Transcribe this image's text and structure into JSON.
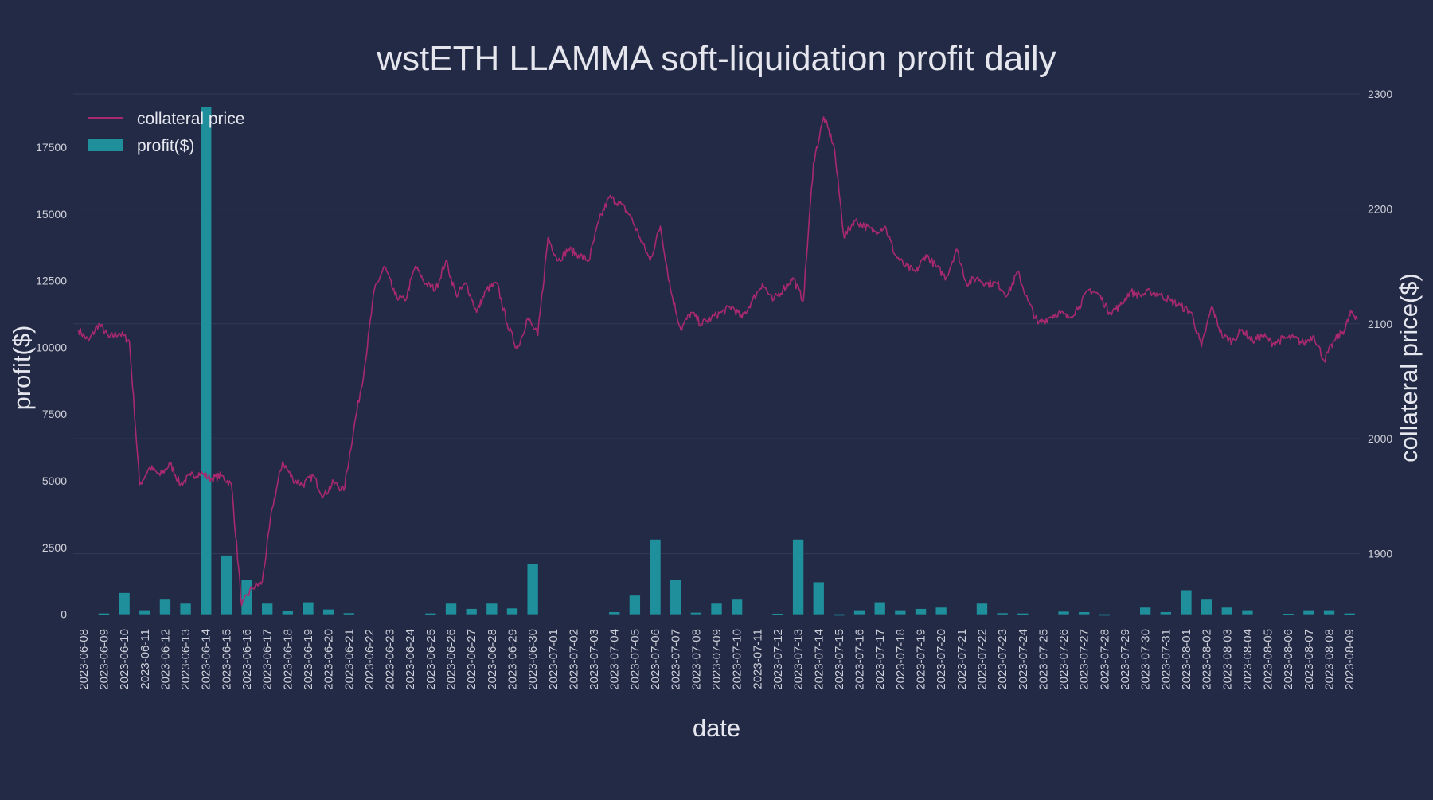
{
  "chart_data": {
    "type": "bar+line",
    "title": "wstETH LLAMMA soft-liquidation profit daily",
    "xlabel": "date",
    "ylabel_left": "profit($)",
    "ylabel_right": "collateral price($)",
    "ylim_left": [
      -100,
      19500
    ],
    "ylim_right": [
      1845,
      2300
    ],
    "yticks_left": [
      0,
      2500,
      5000,
      7500,
      10000,
      12500,
      15000,
      17500
    ],
    "yticks_right": [
      1900,
      2000,
      2100,
      2200,
      2300
    ],
    "grid": true,
    "legend_position": "top-left",
    "legend": [
      {
        "label": "collateral price",
        "kind": "line"
      },
      {
        "label": "profit($)",
        "kind": "bar"
      }
    ],
    "colors": {
      "background": "#222a45",
      "bar": "#1f8f9c",
      "line": "#a8296e",
      "grid": "#323b5a",
      "text": "#e6e6ee",
      "tick_text": "#d0d0da"
    },
    "dates": [
      "2023-06-08",
      "2023-06-09",
      "2023-06-10",
      "2023-06-11",
      "2023-06-12",
      "2023-06-13",
      "2023-06-14",
      "2023-06-15",
      "2023-06-16",
      "2023-06-17",
      "2023-06-18",
      "2023-06-19",
      "2023-06-20",
      "2023-06-21",
      "2023-06-22",
      "2023-06-23",
      "2023-06-24",
      "2023-06-25",
      "2023-06-26",
      "2023-06-27",
      "2023-06-28",
      "2023-06-29",
      "2023-06-30",
      "2023-07-01",
      "2023-07-02",
      "2023-07-03",
      "2023-07-04",
      "2023-07-05",
      "2023-07-06",
      "2023-07-07",
      "2023-07-08",
      "2023-07-09",
      "2023-07-10",
      "2023-07-11",
      "2023-07-12",
      "2023-07-13",
      "2023-07-14",
      "2023-07-15",
      "2023-07-16",
      "2023-07-17",
      "2023-07-18",
      "2023-07-19",
      "2023-07-20",
      "2023-07-21",
      "2023-07-22",
      "2023-07-23",
      "2023-07-24",
      "2023-07-25",
      "2023-07-26",
      "2023-07-27",
      "2023-07-28",
      "2023-07-29",
      "2023-07-30",
      "2023-07-31",
      "2023-08-01",
      "2023-08-02",
      "2023-08-03",
      "2023-08-04",
      "2023-08-05",
      "2023-08-06",
      "2023-08-07",
      "2023-08-08",
      "2023-08-09"
    ],
    "profit": [
      0,
      30,
      800,
      150,
      550,
      400,
      19000,
      2200,
      1300,
      400,
      120,
      450,
      180,
      40,
      0,
      0,
      0,
      30,
      400,
      200,
      400,
      220,
      1900,
      0,
      0,
      0,
      80,
      700,
      2800,
      1300,
      60,
      400,
      550,
      0,
      20,
      2800,
      1200,
      -50,
      150,
      450,
      150,
      200,
      250,
      0,
      400,
      40,
      30,
      0,
      100,
      80,
      -50,
      0,
      250,
      80,
      900,
      550,
      250,
      150,
      0,
      20,
      150,
      150,
      30
    ],
    "collateral_price_anchors": [
      [
        "2023-06-08",
        2095
      ],
      [
        "2023-06-08",
        2085
      ],
      [
        "2023-06-09",
        2100
      ],
      [
        "2023-06-09",
        2088
      ],
      [
        "2023-06-10",
        2092
      ],
      [
        "2023-06-10",
        2085
      ],
      [
        "2023-06-11",
        1960
      ],
      [
        "2023-06-11",
        1975
      ],
      [
        "2023-06-12",
        1968
      ],
      [
        "2023-06-12",
        1978
      ],
      [
        "2023-06-13",
        1960
      ],
      [
        "2023-06-13",
        1968
      ],
      [
        "2023-06-14",
        1970
      ],
      [
        "2023-06-14",
        1965
      ],
      [
        "2023-06-15",
        1968
      ],
      [
        "2023-06-15",
        1960
      ],
      [
        "2023-06-16",
        1855
      ],
      [
        "2023-06-16",
        1870
      ],
      [
        "2023-06-17",
        1875
      ],
      [
        "2023-06-17",
        1940
      ],
      [
        "2023-06-18",
        1980
      ],
      [
        "2023-06-18",
        1965
      ],
      [
        "2023-06-19",
        1960
      ],
      [
        "2023-06-19",
        1968
      ],
      [
        "2023-06-20",
        1950
      ],
      [
        "2023-06-20",
        1962
      ],
      [
        "2023-06-21",
        1955
      ],
      [
        "2023-06-21",
        2010
      ],
      [
        "2023-06-22",
        2060
      ],
      [
        "2023-06-22",
        2130
      ],
      [
        "2023-06-23",
        2150
      ],
      [
        "2023-06-23",
        2125
      ],
      [
        "2023-06-24",
        2120
      ],
      [
        "2023-06-24",
        2150
      ],
      [
        "2023-06-25",
        2135
      ],
      [
        "2023-06-25",
        2130
      ],
      [
        "2023-06-26",
        2155
      ],
      [
        "2023-06-26",
        2125
      ],
      [
        "2023-06-27",
        2135
      ],
      [
        "2023-06-27",
        2110
      ],
      [
        "2023-06-28",
        2130
      ],
      [
        "2023-06-28",
        2135
      ],
      [
        "2023-06-29",
        2100
      ],
      [
        "2023-06-29",
        2078
      ],
      [
        "2023-06-30",
        2105
      ],
      [
        "2023-06-30",
        2090
      ],
      [
        "2023-07-01",
        2175
      ],
      [
        "2023-07-01",
        2155
      ],
      [
        "2023-07-02",
        2165
      ],
      [
        "2023-07-02",
        2160
      ],
      [
        "2023-07-03",
        2155
      ],
      [
        "2023-07-03",
        2190
      ],
      [
        "2023-07-04",
        2210
      ],
      [
        "2023-07-04",
        2205
      ],
      [
        "2023-07-05",
        2195
      ],
      [
        "2023-07-05",
        2175
      ],
      [
        "2023-07-06",
        2155
      ],
      [
        "2023-07-06",
        2185
      ],
      [
        "2023-07-07",
        2130
      ],
      [
        "2023-07-07",
        2095
      ],
      [
        "2023-07-08",
        2110
      ],
      [
        "2023-07-08",
        2100
      ],
      [
        "2023-07-09",
        2105
      ],
      [
        "2023-07-09",
        2110
      ],
      [
        "2023-07-10",
        2115
      ],
      [
        "2023-07-10",
        2105
      ],
      [
        "2023-07-11",
        2120
      ],
      [
        "2023-07-11",
        2135
      ],
      [
        "2023-07-12",
        2120
      ],
      [
        "2023-07-12",
        2130
      ],
      [
        "2023-07-13",
        2140
      ],
      [
        "2023-07-13",
        2120
      ],
      [
        "2023-07-14",
        2240
      ],
      [
        "2023-07-14",
        2280
      ],
      [
        "2023-07-15",
        2255
      ],
      [
        "2023-07-15",
        2175
      ],
      [
        "2023-07-16",
        2190
      ],
      [
        "2023-07-16",
        2185
      ],
      [
        "2023-07-17",
        2180
      ],
      [
        "2023-07-17",
        2185
      ],
      [
        "2023-07-18",
        2160
      ],
      [
        "2023-07-18",
        2150
      ],
      [
        "2023-07-19",
        2145
      ],
      [
        "2023-07-19",
        2160
      ],
      [
        "2023-07-20",
        2150
      ],
      [
        "2023-07-20",
        2140
      ],
      [
        "2023-07-21",
        2165
      ],
      [
        "2023-07-21",
        2135
      ],
      [
        "2023-07-22",
        2140
      ],
      [
        "2023-07-22",
        2135
      ],
      [
        "2023-07-23",
        2135
      ],
      [
        "2023-07-23",
        2125
      ],
      [
        "2023-07-24",
        2145
      ],
      [
        "2023-07-24",
        2120
      ],
      [
        "2023-07-25",
        2100
      ],
      [
        "2023-07-25",
        2105
      ],
      [
        "2023-07-26",
        2110
      ],
      [
        "2023-07-26",
        2105
      ],
      [
        "2023-07-27",
        2115
      ],
      [
        "2023-07-27",
        2130
      ],
      [
        "2023-07-28",
        2125
      ],
      [
        "2023-07-28",
        2110
      ],
      [
        "2023-07-29",
        2115
      ],
      [
        "2023-07-29",
        2128
      ],
      [
        "2023-07-30",
        2125
      ],
      [
        "2023-07-30",
        2128
      ],
      [
        "2023-07-31",
        2125
      ],
      [
        "2023-07-31",
        2120
      ],
      [
        "2023-08-01",
        2115
      ],
      [
        "2023-08-01",
        2110
      ],
      [
        "2023-08-02",
        2080
      ],
      [
        "2023-08-02",
        2115
      ],
      [
        "2023-08-03",
        2090
      ],
      [
        "2023-08-03",
        2085
      ],
      [
        "2023-08-04",
        2095
      ],
      [
        "2023-08-04",
        2085
      ],
      [
        "2023-08-05",
        2090
      ],
      [
        "2023-08-05",
        2083
      ],
      [
        "2023-08-06",
        2087
      ],
      [
        "2023-08-06",
        2088
      ],
      [
        "2023-08-07",
        2083
      ],
      [
        "2023-08-07",
        2090
      ],
      [
        "2023-08-08",
        2068
      ],
      [
        "2023-08-08",
        2085
      ],
      [
        "2023-08-09",
        2095
      ],
      [
        "2023-08-09",
        2110
      ],
      [
        "2023-08-09",
        2105
      ]
    ]
  }
}
